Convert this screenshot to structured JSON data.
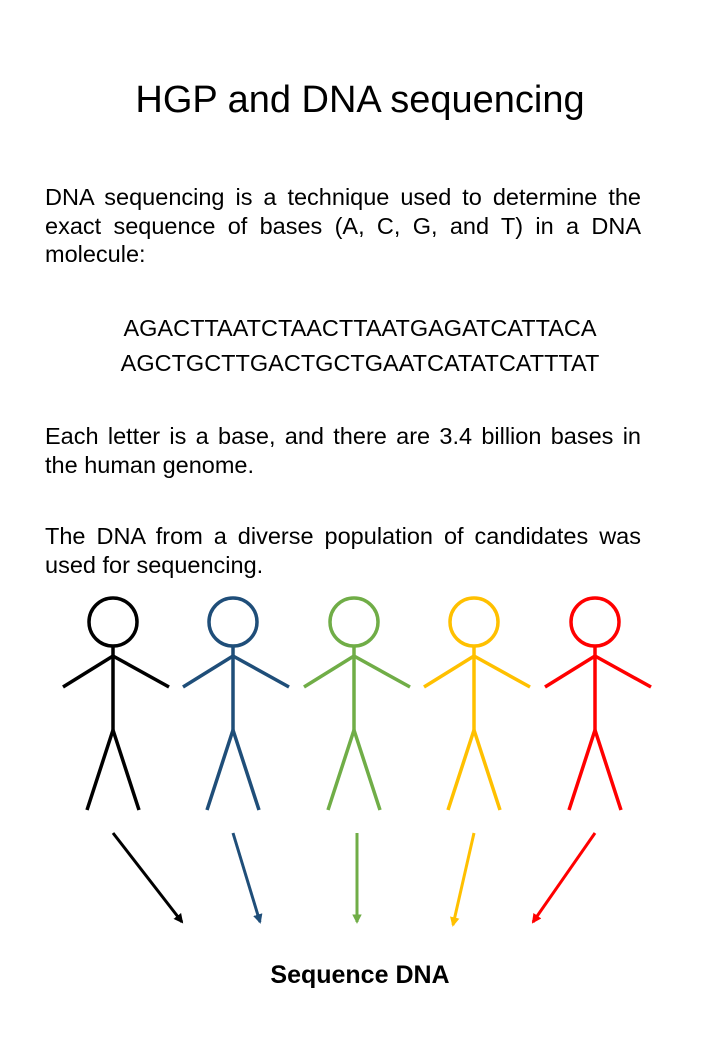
{
  "title": "HGP and DNA sequencing",
  "intro": "DNA sequencing is a technique used to determine the exact sequence of bases (A, C, G, and T) in a DNA molecule:",
  "sequence_lines": [
    "AGACTTAATCTAACTTAATGAGATCATTACA",
    "AGCTGCTTGACTGCTGAATCATATCATTTAT"
  ],
  "bases_fact": "Each letter is a base, and there are 3.4 billion bases in the human genome.",
  "population_note": "The DNA from a diverse population of candidates  was used for sequencing.",
  "figures": [
    {
      "color": "#000000"
    },
    {
      "color": "#1f4e79"
    },
    {
      "color": "#70ad47"
    },
    {
      "color": "#ffc000"
    },
    {
      "color": "#ff0000"
    }
  ],
  "caption": "Sequence DNA"
}
